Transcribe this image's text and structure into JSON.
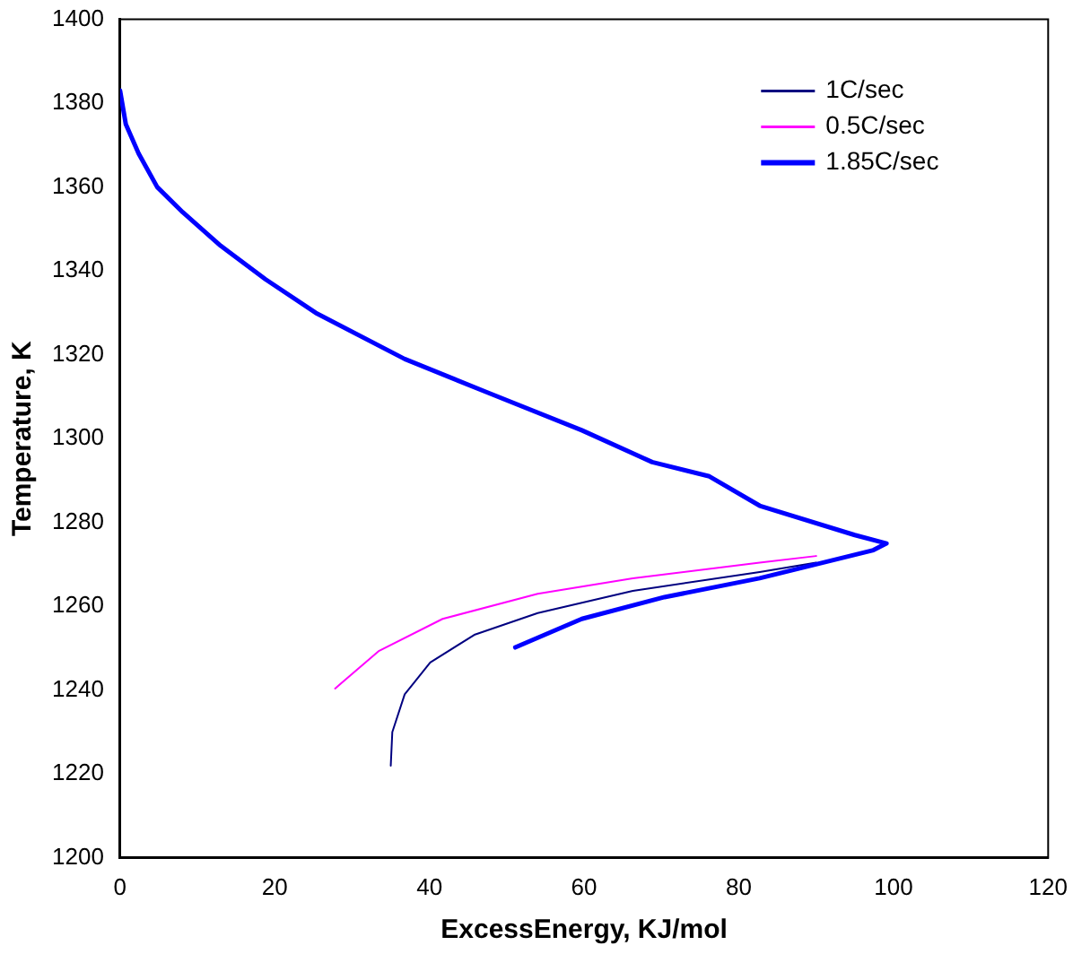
{
  "chart_data": {
    "type": "line",
    "xlabel": "ExcessEnergy, KJ/mol",
    "ylabel": "Temperature, K",
    "xlim": [
      0,
      120
    ],
    "xticks": [
      0,
      20,
      40,
      60,
      80,
      100,
      120
    ],
    "ylim": [
      1200,
      1400
    ],
    "yticks": [
      1200,
      1220,
      1240,
      1260,
      1280,
      1300,
      1320,
      1340,
      1360,
      1380,
      1400
    ],
    "grid": false,
    "legend": "top right",
    "marker": "none",
    "line_style": "solid",
    "series": [
      {
        "name": "1C/sec",
        "color": "#000080",
        "x": [
          90,
          82.7,
          66.3,
          54,
          45.8,
          40.1,
          36.8,
          35.2,
          35
        ],
        "values": [
          1270.4,
          1268.2,
          1263.7,
          1258.4,
          1253.2,
          1246.6,
          1239,
          1230,
          1222
        ]
      },
      {
        "name": "0.5C/sec",
        "color": "#ff00ff",
        "x": [
          90,
          82.7,
          66.3,
          54,
          41.7,
          33.5,
          27.8
        ],
        "values": [
          1272,
          1270.4,
          1266.7,
          1263,
          1257,
          1249.4,
          1240.4
        ]
      },
      {
        "name": "1.85C/sec",
        "color": "#0000ff",
        "x": [
          0,
          0.74,
          2.4,
          4.8,
          8.1,
          13,
          18.8,
          25.3,
          36.8,
          47.5,
          59.7,
          68.8,
          76.2,
          82.7,
          95,
          99.1,
          97.4,
          82.7,
          70.4,
          59.7,
          51.1
        ],
        "values": [
          1383,
          1375,
          1368,
          1360,
          1354,
          1346,
          1338,
          1330,
          1319,
          1311,
          1302,
          1294.4,
          1291,
          1284,
          1277,
          1275,
          1273.4,
          1266.7,
          1262.2,
          1257,
          1250.2
        ]
      }
    ]
  }
}
